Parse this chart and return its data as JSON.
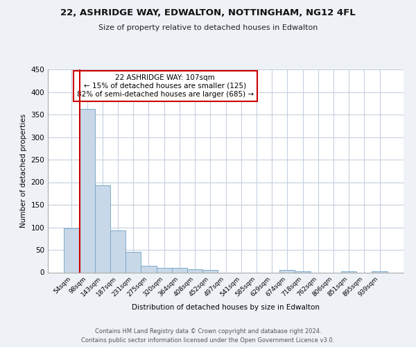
{
  "title1": "22, ASHRIDGE WAY, EDWALTON, NOTTINGHAM, NG12 4FL",
  "title2": "Size of property relative to detached houses in Edwalton",
  "xlabel": "Distribution of detached houses by size in Edwalton",
  "ylabel": "Number of detached properties",
  "footer1": "Contains HM Land Registry data © Crown copyright and database right 2024.",
  "footer2": "Contains public sector information licensed under the Open Government Licence v3.0.",
  "bin_labels": [
    "54sqm",
    "98sqm",
    "143sqm",
    "187sqm",
    "231sqm",
    "275sqm",
    "320sqm",
    "364sqm",
    "408sqm",
    "452sqm",
    "497sqm",
    "541sqm",
    "585sqm",
    "629sqm",
    "674sqm",
    "718sqm",
    "762sqm",
    "806sqm",
    "851sqm",
    "895sqm",
    "939sqm"
  ],
  "bar_values": [
    97,
    362,
    193,
    93,
    45,
    14,
    10,
    10,
    7,
    5,
    0,
    0,
    0,
    0,
    5,
    2,
    0,
    0,
    2,
    0,
    2
  ],
  "bar_color": "#c8d8e8",
  "bar_edge_color": "#7aaac8",
  "vline_color": "#cc0000",
  "annotation_title": "22 ASHRIDGE WAY: 107sqm",
  "annotation_line1": "← 15% of detached houses are smaller (125)",
  "annotation_line2": "82% of semi-detached houses are larger (685) →",
  "annotation_box_edge": "#cc0000",
  "ylim": [
    0,
    450
  ],
  "yticks": [
    0,
    50,
    100,
    150,
    200,
    250,
    300,
    350,
    400,
    450
  ],
  "bg_color": "#eef2f7",
  "plot_bg_color": "#ffffff",
  "grid_color": "#c5d0e0"
}
